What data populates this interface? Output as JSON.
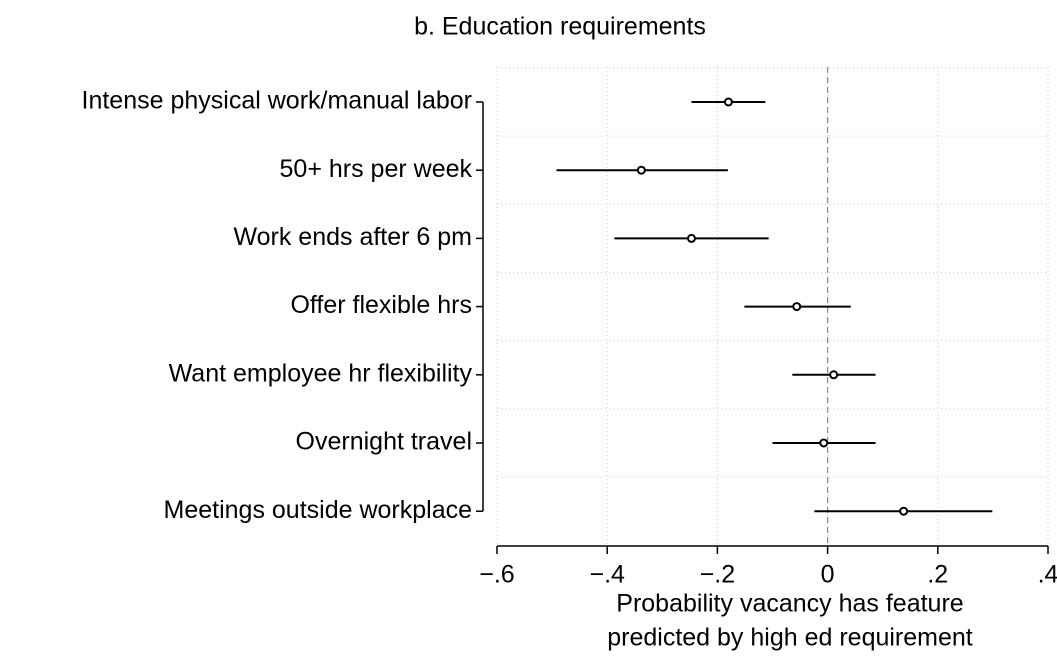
{
  "chart_data": {
    "type": "coefplot",
    "title": "b. Education requirements",
    "categories": [
      "Intense physical work/manual labor",
      "50+ hrs per week",
      "Work ends after 6 pm",
      "Offer flexible hrs",
      "Want employee hr flexibility",
      "Overnight travel",
      "Meetings outside workplace"
    ],
    "values": [
      -0.18,
      -0.338,
      -0.247,
      -0.056,
      0.011,
      -0.007,
      0.138
    ],
    "lower": [
      -0.247,
      -0.492,
      -0.387,
      -0.151,
      -0.064,
      -0.1,
      -0.024
    ],
    "upper": [
      -0.113,
      -0.181,
      -0.107,
      0.042,
      0.087,
      0.087,
      0.299
    ],
    "color": "#000000",
    "refline": 0,
    "refline_color": "#b5709e",
    "xlim": [
      -0.6,
      0.4
    ],
    "xticks": [
      {
        "value": -0.6,
        "label": "−.6"
      },
      {
        "value": -0.4,
        "label": "−.4"
      },
      {
        "value": -0.2,
        "label": "−.2"
      },
      0,
      {
        "value": 0.2,
        "label": ".2"
      },
      {
        "value": 0.4,
        "label": ".4"
      }
    ],
    "xlabel": [
      "Probability vacancy has feature",
      "predicted by high ed requirement"
    ],
    "grid": true
  }
}
